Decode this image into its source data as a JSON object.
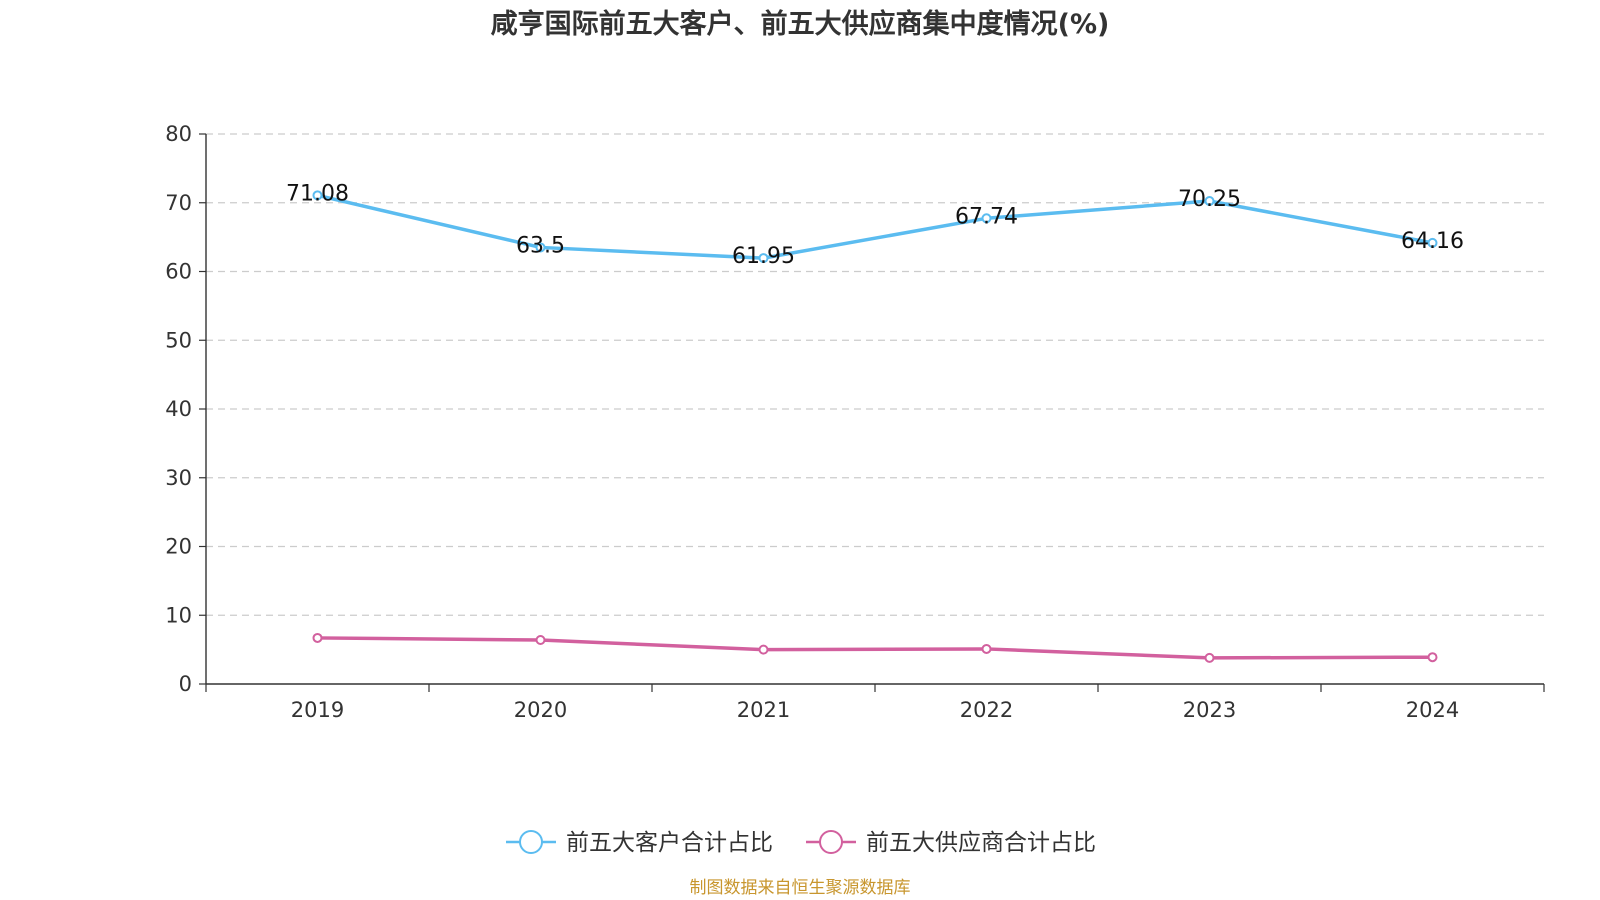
{
  "chart_data": {
    "type": "line",
    "title": "咸亨国际前五大客户、前五大供应商集中度情况(%)",
    "categories": [
      "2019",
      "2020",
      "2021",
      "2022",
      "2023",
      "2024"
    ],
    "ylim": [
      0,
      80
    ],
    "yticks": [
      "0",
      "10",
      "20",
      "30",
      "40",
      "50",
      "60",
      "70",
      "80"
    ],
    "grid": true,
    "legend_position": "bottom",
    "series": [
      {
        "name": "前五大客户合计占比",
        "color": "#5bbcf0",
        "values": [
          71.08,
          63.5,
          61.95,
          67.74,
          70.25,
          64.16
        ],
        "labels": [
          "71.08",
          "63.5",
          "61.95",
          "67.74",
          "70.25",
          "64.16"
        ]
      },
      {
        "name": "前五大供应商合计占比",
        "color": "#d2609e",
        "values": [
          6.7,
          6.4,
          5.0,
          5.1,
          3.8,
          3.9
        ]
      }
    ],
    "source": "制图数据来自恒生聚源数据库"
  }
}
